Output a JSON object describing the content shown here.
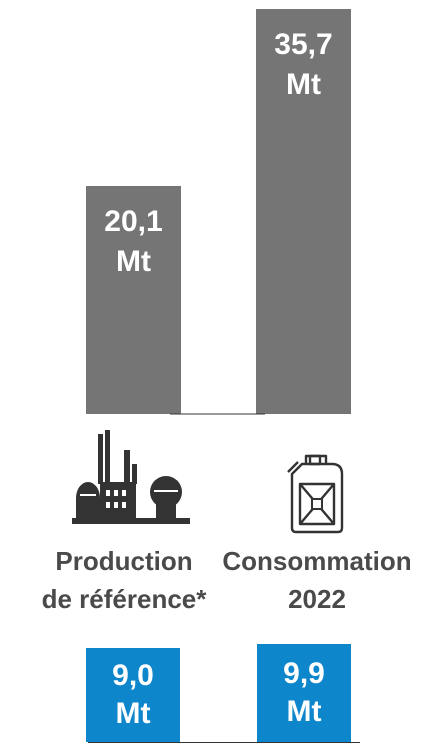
{
  "colors": {
    "bar_main": "#757575",
    "bar_sub": "#0e86cc",
    "label_text": "#4a4a4a",
    "bar_text": "#ffffff"
  },
  "chart_data": {
    "type": "bar",
    "categories": [
      "Production de référence*",
      "Consommation 2022"
    ],
    "values": [
      20.1,
      35.7
    ],
    "value_labels": [
      [
        "20,1",
        "Mt"
      ],
      [
        "35,7",
        "Mt"
      ]
    ],
    "unit": "Mt",
    "secondary": {
      "values": [
        9.0,
        9.9
      ],
      "value_labels": [
        [
          "9,0",
          "Mt"
        ],
        [
          "9,9",
          "Mt"
        ]
      ]
    }
  },
  "categories": [
    {
      "line1": "Production",
      "line2": "de référence*",
      "icon": "refinery-icon"
    },
    {
      "line1": "Consommation",
      "line2": "2022",
      "icon": "jerrycan-icon"
    }
  ]
}
